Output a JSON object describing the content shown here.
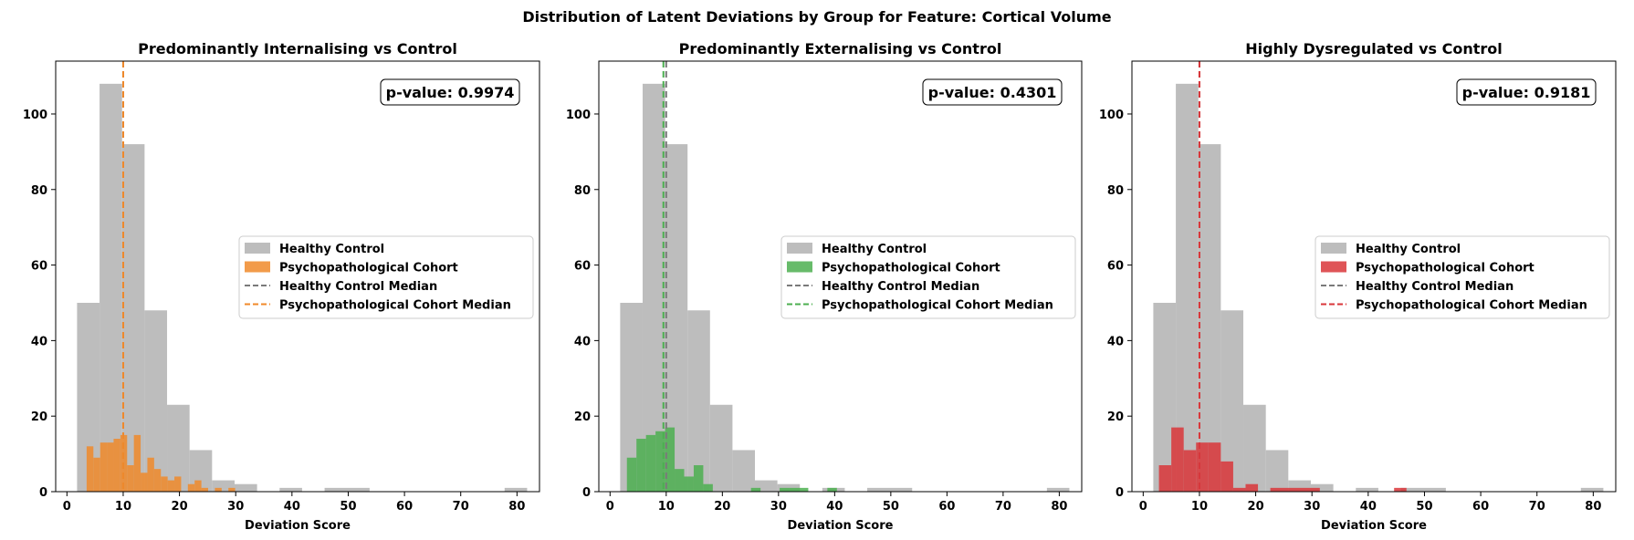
{
  "figure": {
    "suptitle": "Distribution of Latent Deviations by Group for Feature: Cortical Volume"
  },
  "colors": {
    "control_fill": "#bdbdbd",
    "control_median": "#7a7a7a",
    "panel_accents": [
      "#f0892a",
      "#4caf50",
      "#d9363a"
    ]
  },
  "legend_labels": {
    "control": "Healthy Control",
    "cohort": "Psychopathological Cohort",
    "control_median": "Healthy Control Median",
    "cohort_median": "Psychopathological Cohort Median"
  },
  "chart_data": [
    {
      "type": "histogram",
      "title": "Predominantly Internalising vs Control",
      "xlabel": "Deviation Score",
      "ylabel": "",
      "xlim": [
        -2,
        84
      ],
      "ylim": [
        0,
        114
      ],
      "xticks": [
        0,
        10,
        20,
        30,
        40,
        50,
        60,
        70,
        80
      ],
      "yticks": [
        0,
        20,
        40,
        60,
        80,
        100
      ],
      "annotation": "p-value: 0.9974",
      "legend_position": "center-right",
      "series": [
        {
          "name": "Healthy Control",
          "bins": [
            {
              "x0": 1.8,
              "x1": 5.8,
              "count": 50
            },
            {
              "x0": 5.8,
              "x1": 9.8,
              "count": 108
            },
            {
              "x0": 9.8,
              "x1": 13.8,
              "count": 92
            },
            {
              "x0": 13.8,
              "x1": 17.8,
              "count": 48
            },
            {
              "x0": 17.8,
              "x1": 21.8,
              "count": 23
            },
            {
              "x0": 21.8,
              "x1": 25.8,
              "count": 11
            },
            {
              "x0": 25.8,
              "x1": 29.8,
              "count": 3
            },
            {
              "x0": 29.8,
              "x1": 33.8,
              "count": 2
            },
            {
              "x0": 37.8,
              "x1": 41.8,
              "count": 1
            },
            {
              "x0": 45.8,
              "x1": 53.8,
              "count": 1
            },
            {
              "x0": 77.8,
              "x1": 81.8,
              "count": 1
            }
          ],
          "median": 10
        },
        {
          "name": "Psychopathological Cohort",
          "bins": [
            {
              "x0": 3.5,
              "x1": 4.7,
              "count": 12
            },
            {
              "x0": 4.7,
              "x1": 5.9,
              "count": 9
            },
            {
              "x0": 5.9,
              "x1": 7.1,
              "count": 13
            },
            {
              "x0": 7.1,
              "x1": 8.3,
              "count": 13
            },
            {
              "x0": 8.3,
              "x1": 9.5,
              "count": 14
            },
            {
              "x0": 9.5,
              "x1": 10.7,
              "count": 15
            },
            {
              "x0": 10.7,
              "x1": 11.9,
              "count": 7
            },
            {
              "x0": 11.9,
              "x1": 13.1,
              "count": 15
            },
            {
              "x0": 13.1,
              "x1": 14.3,
              "count": 5
            },
            {
              "x0": 14.3,
              "x1": 15.5,
              "count": 9
            },
            {
              "x0": 15.5,
              "x1": 16.7,
              "count": 6
            },
            {
              "x0": 16.7,
              "x1": 17.9,
              "count": 4
            },
            {
              "x0": 17.9,
              "x1": 19.1,
              "count": 3
            },
            {
              "x0": 19.1,
              "x1": 20.3,
              "count": 4
            },
            {
              "x0": 21.5,
              "x1": 22.7,
              "count": 2
            },
            {
              "x0": 22.7,
              "x1": 23.9,
              "count": 3
            },
            {
              "x0": 23.9,
              "x1": 25.1,
              "count": 1
            },
            {
              "x0": 26.3,
              "x1": 27.5,
              "count": 1
            },
            {
              "x0": 28.7,
              "x1": 29.9,
              "count": 1
            }
          ],
          "median": 10
        }
      ]
    },
    {
      "type": "histogram",
      "title": "Predominantly Externalising vs Control",
      "xlabel": "Deviation Score",
      "ylabel": "",
      "xlim": [
        -2,
        84
      ],
      "ylim": [
        0,
        114
      ],
      "xticks": [
        0,
        10,
        20,
        30,
        40,
        50,
        60,
        70,
        80
      ],
      "yticks": [
        0,
        20,
        40,
        60,
        80,
        100
      ],
      "annotation": "p-value: 0.4301",
      "legend_position": "center-right",
      "series": [
        {
          "name": "Healthy Control",
          "bins": [
            {
              "x0": 1.8,
              "x1": 5.8,
              "count": 50
            },
            {
              "x0": 5.8,
              "x1": 9.8,
              "count": 108
            },
            {
              "x0": 9.8,
              "x1": 13.8,
              "count": 92
            },
            {
              "x0": 13.8,
              "x1": 17.8,
              "count": 48
            },
            {
              "x0": 17.8,
              "x1": 21.8,
              "count": 23
            },
            {
              "x0": 21.8,
              "x1": 25.8,
              "count": 11
            },
            {
              "x0": 25.8,
              "x1": 29.8,
              "count": 3
            },
            {
              "x0": 29.8,
              "x1": 33.8,
              "count": 2
            },
            {
              "x0": 37.8,
              "x1": 41.8,
              "count": 1
            },
            {
              "x0": 45.8,
              "x1": 53.8,
              "count": 1
            },
            {
              "x0": 77.8,
              "x1": 81.8,
              "count": 1
            }
          ],
          "median": 10
        },
        {
          "name": "Psychopathological Cohort",
          "bins": [
            {
              "x0": 3.0,
              "x1": 4.7,
              "count": 9
            },
            {
              "x0": 4.7,
              "x1": 6.4,
              "count": 14
            },
            {
              "x0": 6.4,
              "x1": 8.1,
              "count": 15
            },
            {
              "x0": 8.1,
              "x1": 9.8,
              "count": 16
            },
            {
              "x0": 9.8,
              "x1": 11.5,
              "count": 17
            },
            {
              "x0": 11.5,
              "x1": 13.2,
              "count": 6
            },
            {
              "x0": 13.2,
              "x1": 14.9,
              "count": 4
            },
            {
              "x0": 14.9,
              "x1": 16.6,
              "count": 7
            },
            {
              "x0": 16.6,
              "x1": 18.3,
              "count": 2
            },
            {
              "x0": 25.1,
              "x1": 26.8,
              "count": 1
            },
            {
              "x0": 30.2,
              "x1": 31.9,
              "count": 1
            },
            {
              "x0": 31.9,
              "x1": 35.3,
              "count": 1
            },
            {
              "x0": 38.7,
              "x1": 40.4,
              "count": 1
            }
          ],
          "median": 9.5
        }
      ]
    },
    {
      "type": "histogram",
      "title": "Highly Dysregulated vs Control",
      "xlabel": "Deviation Score",
      "ylabel": "",
      "xlim": [
        -2,
        84
      ],
      "ylim": [
        0,
        114
      ],
      "xticks": [
        0,
        10,
        20,
        30,
        40,
        50,
        60,
        70,
        80
      ],
      "yticks": [
        0,
        20,
        40,
        60,
        80,
        100
      ],
      "annotation": "p-value: 0.9181",
      "legend_position": "center-right",
      "series": [
        {
          "name": "Healthy Control",
          "bins": [
            {
              "x0": 1.8,
              "x1": 5.8,
              "count": 50
            },
            {
              "x0": 5.8,
              "x1": 9.8,
              "count": 108
            },
            {
              "x0": 9.8,
              "x1": 13.8,
              "count": 92
            },
            {
              "x0": 13.8,
              "x1": 17.8,
              "count": 48
            },
            {
              "x0": 17.8,
              "x1": 21.8,
              "count": 23
            },
            {
              "x0": 21.8,
              "x1": 25.8,
              "count": 11
            },
            {
              "x0": 25.8,
              "x1": 29.8,
              "count": 3
            },
            {
              "x0": 29.8,
              "x1": 33.8,
              "count": 2
            },
            {
              "x0": 37.8,
              "x1": 41.8,
              "count": 1
            },
            {
              "x0": 45.8,
              "x1": 53.8,
              "count": 1
            },
            {
              "x0": 77.8,
              "x1": 81.8,
              "count": 1
            }
          ],
          "median": 10
        },
        {
          "name": "Psychopathological Cohort",
          "bins": [
            {
              "x0": 2.8,
              "x1": 5.0,
              "count": 7
            },
            {
              "x0": 5.0,
              "x1": 7.2,
              "count": 17
            },
            {
              "x0": 7.2,
              "x1": 9.4,
              "count": 11
            },
            {
              "x0": 9.4,
              "x1": 11.6,
              "count": 13
            },
            {
              "x0": 11.6,
              "x1": 13.8,
              "count": 13
            },
            {
              "x0": 13.8,
              "x1": 16.0,
              "count": 8
            },
            {
              "x0": 16.0,
              "x1": 18.2,
              "count": 1
            },
            {
              "x0": 18.2,
              "x1": 20.4,
              "count": 2
            },
            {
              "x0": 22.6,
              "x1": 31.4,
              "count": 1
            },
            {
              "x0": 44.6,
              "x1": 46.8,
              "count": 1
            }
          ],
          "median": 10
        }
      ]
    }
  ]
}
